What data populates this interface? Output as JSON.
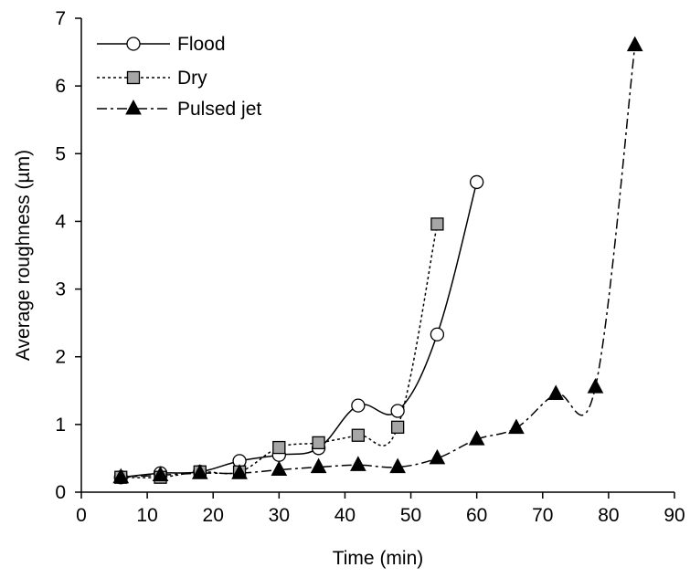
{
  "chart_data": {
    "type": "line",
    "title": "",
    "xlabel": "Time (min)",
    "ylabel": "Average roughness (µm)",
    "xlim": [
      0,
      90
    ],
    "ylim": [
      0,
      7
    ],
    "xticks": [
      0,
      10,
      20,
      30,
      40,
      50,
      60,
      70,
      80,
      90
    ],
    "yticks": [
      0,
      1,
      2,
      3,
      4,
      5,
      6,
      7
    ],
    "grid": false,
    "legend_position": "top-left",
    "series": [
      {
        "name": "Flood",
        "line_style": "solid",
        "marker": "open-circle",
        "x": [
          6,
          12,
          18,
          24,
          30,
          36,
          42,
          48,
          54,
          60
        ],
        "y": [
          0.22,
          0.28,
          0.3,
          0.46,
          0.55,
          0.65,
          1.28,
          1.2,
          2.33,
          4.58
        ]
      },
      {
        "name": "Dry",
        "line_style": "dotted",
        "marker": "gray-square",
        "x": [
          6,
          12,
          18,
          24,
          30,
          36,
          42,
          48,
          54
        ],
        "y": [
          0.22,
          0.22,
          0.3,
          0.3,
          0.66,
          0.73,
          0.84,
          0.96,
          3.96
        ]
      },
      {
        "name": "Pulsed jet",
        "line_style": "dash-dot",
        "marker": "filled-triangle",
        "x": [
          6,
          12,
          18,
          24,
          30,
          36,
          42,
          48,
          54,
          60,
          66,
          72,
          78,
          84
        ],
        "y": [
          0.22,
          0.25,
          0.28,
          0.28,
          0.33,
          0.37,
          0.4,
          0.37,
          0.5,
          0.78,
          0.95,
          1.45,
          1.55,
          6.6
        ]
      }
    ]
  }
}
